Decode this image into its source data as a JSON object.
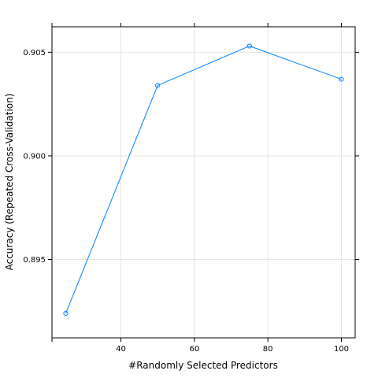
{
  "chart_data": {
    "type": "line",
    "title": "",
    "xlabel": "#Randomly Selected Predictors",
    "ylabel": "Accuracy (Repeated Cross-Validation)",
    "xlim": [
      21.25,
      103.75
    ],
    "ylim": [
      0.89122,
      0.90623
    ],
    "x_ticks": [
      40,
      60,
      80,
      100
    ],
    "y_ticks": [
      0.895,
      0.9,
      0.905
    ],
    "y_tick_labels": [
      "0.895",
      "0.900",
      "0.905"
    ],
    "grid": true,
    "series": [
      {
        "x": [
          25,
          50,
          75,
          100
        ],
        "y": [
          0.8924,
          0.9034,
          0.9053,
          0.9037
        ],
        "color": "#0080ff",
        "marker": "open-circle"
      }
    ]
  }
}
